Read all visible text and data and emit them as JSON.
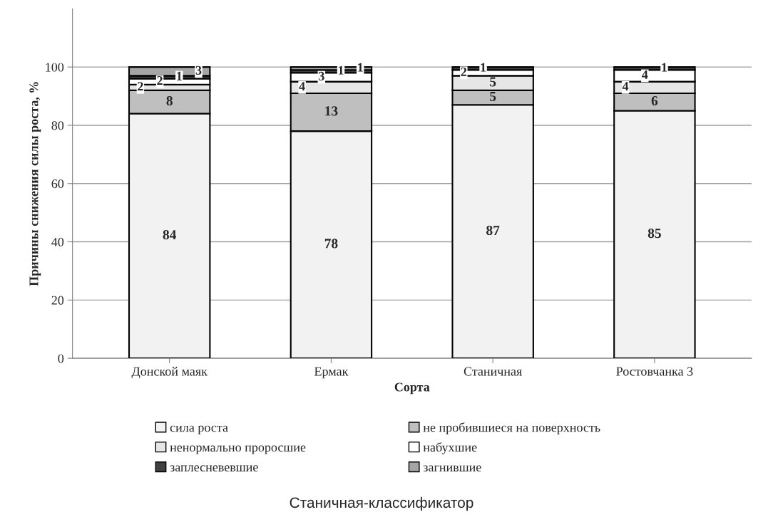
{
  "chart_data": {
    "type": "bar",
    "stacked": true,
    "categories": [
      "Донской маяк",
      "Ермак",
      "Станичная",
      "Ростовчанка 3"
    ],
    "xlabel": "Сорта",
    "ylabel": "Причины снижения силы роста, %",
    "ylim": [
      0,
      120
    ],
    "yticks": [
      0,
      20,
      40,
      60,
      80,
      100
    ],
    "grid": "y",
    "legend": "bottom",
    "annotations": [
      "Станичная-классификатор"
    ],
    "series": [
      {
        "name": "сила роста",
        "color": "#f2f2f2",
        "values": [
          84,
          78,
          87,
          85
        ],
        "value_labels": [
          "84",
          "78",
          "87",
          "85"
        ]
      },
      {
        "name": "не пробившиеся на поверхность",
        "color": "#bfbfbf",
        "values": [
          8,
          13,
          5,
          6
        ],
        "value_labels": [
          "8",
          "13",
          "5",
          "6"
        ]
      },
      {
        "name": "ненормально проросшие",
        "color": "#e6e6e6",
        "values": [
          2,
          4,
          5,
          4
        ],
        "value_labels": [
          "2",
          "4",
          "5",
          "4"
        ]
      },
      {
        "name": "набухшие",
        "color": "#ffffff",
        "values": [
          2,
          3,
          2,
          4
        ],
        "value_labels": [
          "2",
          "3",
          "2",
          "4"
        ]
      },
      {
        "name": "заплесневевшие",
        "color": "#404040",
        "values": [
          1,
          1,
          1,
          1
        ],
        "value_labels": [
          "1",
          "1",
          "1",
          "1"
        ]
      },
      {
        "name": "загнившие",
        "color": "#a6a6a6",
        "values": [
          3,
          1,
          0,
          0
        ],
        "value_labels": [
          "3",
          "1",
          null,
          null
        ]
      }
    ]
  }
}
